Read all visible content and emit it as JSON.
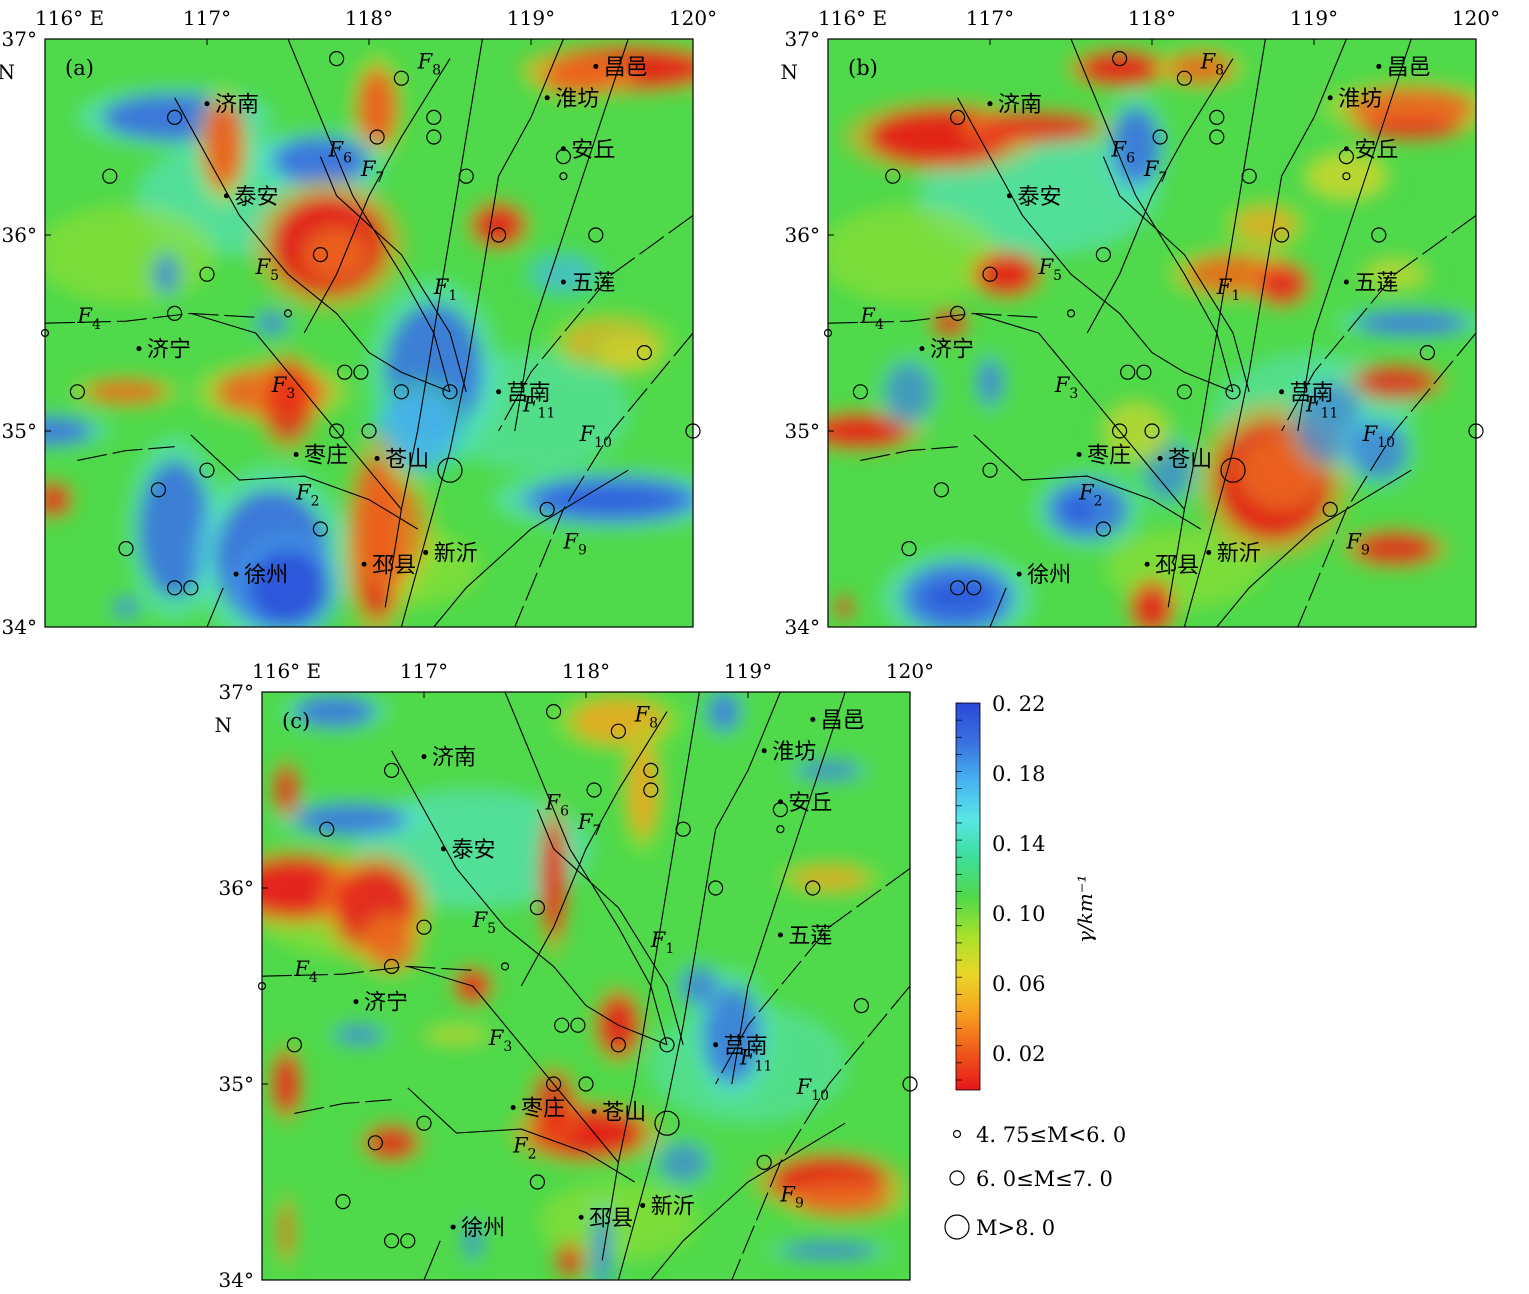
{
  "panels": [
    {
      "id": "a",
      "label": "(a)"
    },
    {
      "id": "b",
      "label": "(b)"
    },
    {
      "id": "c",
      "label": "(c)"
    }
  ],
  "axes": {
    "lon_ticks": [
      "116° E",
      "117°",
      "118°",
      "119°",
      "120°"
    ],
    "lat_ticks": [
      "37°",
      "36°",
      "35°",
      "34°"
    ],
    "lat_unit": "N"
  },
  "cities": [
    {
      "name": "济南",
      "lon": 117.0,
      "lat": 36.67
    },
    {
      "name": "泰安",
      "lon": 117.12,
      "lat": 36.2
    },
    {
      "name": "昌邑",
      "lon": 119.4,
      "lat": 36.86
    },
    {
      "name": "淮坊",
      "lon": 119.1,
      "lat": 36.7
    },
    {
      "name": "安丘",
      "lon": 119.2,
      "lat": 36.44
    },
    {
      "name": "五莲",
      "lon": 119.2,
      "lat": 35.76
    },
    {
      "name": "济宁",
      "lon": 116.58,
      "lat": 35.42
    },
    {
      "name": "莒南",
      "lon": 118.8,
      "lat": 35.2
    },
    {
      "name": "枣庄",
      "lon": 117.55,
      "lat": 34.88
    },
    {
      "name": "苍山",
      "lon": 118.05,
      "lat": 34.86
    },
    {
      "name": "新沂",
      "lon": 118.35,
      "lat": 34.38
    },
    {
      "name": "徐州",
      "lon": 117.18,
      "lat": 34.27
    },
    {
      "name": "邳县",
      "lon": 117.97,
      "lat": 34.32
    }
  ],
  "faults": [
    {
      "name": "F",
      "sub": "1"
    },
    {
      "name": "F",
      "sub": "2"
    },
    {
      "name": "F",
      "sub": "3"
    },
    {
      "name": "F",
      "sub": "4"
    },
    {
      "name": "F",
      "sub": "5"
    },
    {
      "name": "F",
      "sub": "6"
    },
    {
      "name": "F",
      "sub": "7"
    },
    {
      "name": "F",
      "sub": "8"
    },
    {
      "name": "F",
      "sub": "9"
    },
    {
      "name": "F",
      "sub": "10"
    },
    {
      "name": "F",
      "sub": "11"
    }
  ],
  "earthquakes": [
    {
      "lon": 116.0,
      "lat": 35.5,
      "mag": "small"
    },
    {
      "lon": 117.5,
      "lat": 35.6,
      "mag": "small"
    },
    {
      "lon": 119.2,
      "lat": 36.3,
      "mag": "small"
    },
    {
      "lon": 116.4,
      "lat": 36.3,
      "mag": "mid"
    },
    {
      "lon": 116.8,
      "lat": 36.6,
      "mag": "mid"
    },
    {
      "lon": 117.8,
      "lat": 36.9,
      "mag": "mid"
    },
    {
      "lon": 118.2,
      "lat": 36.8,
      "mag": "mid"
    },
    {
      "lon": 118.4,
      "lat": 36.6,
      "mag": "mid"
    },
    {
      "lon": 118.4,
      "lat": 36.5,
      "mag": "mid"
    },
    {
      "lon": 118.05,
      "lat": 36.5,
      "mag": "mid"
    },
    {
      "lon": 118.6,
      "lat": 36.3,
      "mag": "mid"
    },
    {
      "lon": 119.2,
      "lat": 36.4,
      "mag": "mid"
    },
    {
      "lon": 118.8,
      "lat": 36.0,
      "mag": "mid"
    },
    {
      "lon": 119.4,
      "lat": 36.0,
      "mag": "mid"
    },
    {
      "lon": 117.0,
      "lat": 35.8,
      "mag": "mid"
    },
    {
      "lon": 117.7,
      "lat": 35.9,
      "mag": "mid"
    },
    {
      "lon": 116.8,
      "lat": 35.6,
      "mag": "mid"
    },
    {
      "lon": 119.7,
      "lat": 35.4,
      "mag": "mid"
    },
    {
      "lon": 116.2,
      "lat": 35.2,
      "mag": "mid"
    },
    {
      "lon": 117.85,
      "lat": 35.3,
      "mag": "mid"
    },
    {
      "lon": 117.95,
      "lat": 35.3,
      "mag": "mid"
    },
    {
      "lon": 118.2,
      "lat": 35.2,
      "mag": "mid"
    },
    {
      "lon": 118.5,
      "lat": 35.2,
      "mag": "mid"
    },
    {
      "lon": 117.8,
      "lat": 35.0,
      "mag": "mid"
    },
    {
      "lon": 118.0,
      "lat": 35.0,
      "mag": "mid"
    },
    {
      "lon": 120.0,
      "lat": 35.0,
      "mag": "mid"
    },
    {
      "lon": 117.0,
      "lat": 34.8,
      "mag": "mid"
    },
    {
      "lon": 116.7,
      "lat": 34.7,
      "mag": "mid"
    },
    {
      "lon": 117.7,
      "lat": 34.5,
      "mag": "mid"
    },
    {
      "lon": 119.1,
      "lat": 34.6,
      "mag": "mid"
    },
    {
      "lon": 116.5,
      "lat": 34.4,
      "mag": "mid"
    },
    {
      "lon": 116.8,
      "lat": 34.2,
      "mag": "mid"
    },
    {
      "lon": 116.9,
      "lat": 34.2,
      "mag": "mid"
    },
    {
      "lon": 118.5,
      "lat": 34.8,
      "mag": "big"
    }
  ],
  "colorbar": {
    "unit": "γ/km⁻¹",
    "tick_labels": [
      "0. 22",
      "0. 18",
      "0. 14",
      "0. 10",
      "0. 06",
      "0. 02"
    ],
    "stops": [
      "#e8151a",
      "#f05a1a",
      "#f6a21f",
      "#e9d628",
      "#a6e22c",
      "#4fd94b",
      "#3dde9a",
      "#58e6e6",
      "#47b2f2",
      "#3a6fe0",
      "#2a48d8"
    ]
  },
  "legend": [
    {
      "key": "small",
      "text": "4. 75≤M<6. 0"
    },
    {
      "key": "mid",
      "text": "6. 0≤M≤7. 0"
    },
    {
      "key": "big",
      "text": "M>8. 0"
    }
  ]
}
